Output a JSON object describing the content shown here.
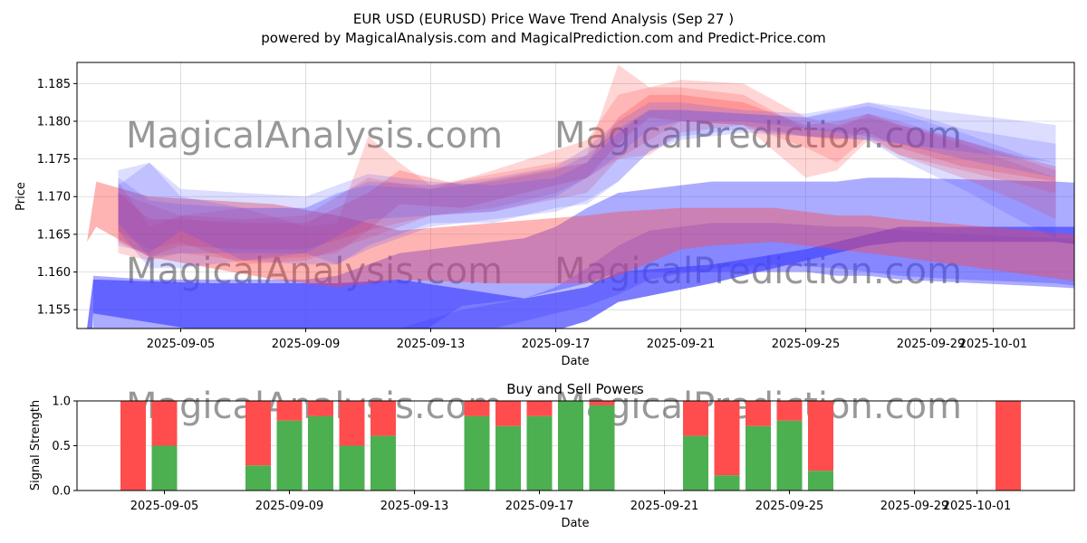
{
  "colors": {
    "red": "#ff4444",
    "blue": "#4444ff",
    "buy": "#4caf50",
    "sell": "#ff4d4d",
    "grid": "#b0b0b0"
  },
  "chart_data": [
    {
      "type": "area",
      "title": "EUR USD (EURUSD) Price Wave Trend Analysis (Sep 27 )",
      "subtitle": "powered by MagicalAnalysis.com and MagicalPrediction.com and Predict-Price.com",
      "xlabel": "Date",
      "ylabel": "Price",
      "ylim": [
        1.1525,
        1.1878
      ],
      "xlim": [
        "2025-09-02",
        "2025-10-04"
      ],
      "x_ticks": [
        "2025-09-05",
        "2025-09-09",
        "2025-09-13",
        "2025-09-17",
        "2025-09-21",
        "2025-09-25",
        "2025-09-29",
        "2025-10-01"
      ],
      "y_ticks": [
        "1.155",
        "1.160",
        "1.165",
        "1.170",
        "1.175",
        "1.180",
        "1.185"
      ],
      "grid": true,
      "watermarks": [
        "MagicalAnalysis.com",
        "MagicalPrediction.com"
      ],
      "bands": [
        {
          "color": "blue",
          "opacity": 0.7,
          "x": [
            0.0,
            0.2,
            4,
            7,
            8,
            10,
            14,
            16,
            17,
            20,
            23,
            25,
            26,
            31,
            33
          ],
          "lo": [
            1.14,
            1.1545,
            1.152,
            1.151,
            1.15,
            1.15,
            1.151,
            1.1535,
            1.156,
            1.1585,
            1.1615,
            1.1635,
            1.164,
            1.164,
            1.163
          ],
          "hi": [
            1.1525,
            1.159,
            1.1585,
            1.1585,
            1.1585,
            1.159,
            1.1565,
            1.158,
            1.16,
            1.161,
            1.163,
            1.165,
            1.166,
            1.166,
            1.166
          ]
        },
        {
          "color": "blue",
          "opacity": 0.45,
          "x": [
            0.2,
            2,
            4,
            7,
            8,
            10,
            12,
            14,
            15,
            16,
            17,
            19,
            20,
            23,
            24,
            25,
            26,
            31,
            33
          ],
          "lo": [
            1.1525,
            1.149,
            1.148,
            1.148,
            1.149,
            1.15,
            1.1555,
            1.1565,
            1.1575,
            1.1585,
            1.16,
            1.16,
            1.16,
            1.16,
            1.1595,
            1.1595,
            1.159,
            1.158,
            1.1575
          ],
          "hi": [
            1.1595,
            1.159,
            1.159,
            1.159,
            1.1595,
            1.1625,
            1.1635,
            1.1645,
            1.166,
            1.1685,
            1.1705,
            1.1715,
            1.172,
            1.172,
            1.172,
            1.1725,
            1.1725,
            1.172,
            1.1715
          ]
        },
        {
          "color": "blue",
          "opacity": 0.35,
          "x": [
            9,
            10,
            12,
            14,
            15,
            16,
            17,
            18,
            20,
            22,
            24,
            25,
            26,
            28,
            31,
            33
          ],
          "lo": [
            1.15,
            1.1485,
            1.1515,
            1.1535,
            1.1545,
            1.1555,
            1.157,
            1.159,
            1.1605,
            1.161,
            1.1605,
            1.16,
            1.1595,
            1.159,
            1.1585,
            1.1575
          ],
          "hi": [
            1.1525,
            1.1525,
            1.155,
            1.1565,
            1.158,
            1.1605,
            1.1635,
            1.1655,
            1.1665,
            1.1665,
            1.166,
            1.166,
            1.1655,
            1.165,
            1.1645,
            1.164
          ]
        },
        {
          "color": "red",
          "opacity": 0.4,
          "x": [
            0,
            0.3,
            2,
            6,
            8,
            10,
            13,
            16,
            17,
            19,
            20,
            22,
            23,
            24,
            25,
            26,
            33
          ],
          "lo": [
            1.164,
            1.166,
            1.162,
            1.159,
            1.158,
            1.159,
            1.1585,
            1.1585,
            1.1595,
            1.163,
            1.1635,
            1.164,
            1.1635,
            1.163,
            1.1625,
            1.162,
            1.158
          ],
          "hi": [
            1.164,
            1.172,
            1.17,
            1.169,
            1.1675,
            1.1655,
            1.1665,
            1.1675,
            1.168,
            1.1685,
            1.1685,
            1.1685,
            1.168,
            1.1675,
            1.1675,
            1.167,
            1.1645
          ]
        },
        {
          "color": "red",
          "opacity": 0.22,
          "x": [
            1,
            2,
            3,
            5,
            7,
            9,
            11,
            13,
            16,
            17,
            19,
            21,
            23,
            24,
            25,
            26,
            28,
            30,
            31
          ],
          "lo": [
            1.1655,
            1.163,
            1.164,
            1.161,
            1.1615,
            1.1645,
            1.1675,
            1.168,
            1.1705,
            1.175,
            1.18,
            1.1795,
            1.1765,
            1.1745,
            1.178,
            1.1755,
            1.1725,
            1.169,
            1.167
          ],
          "hi": [
            1.1705,
            1.169,
            1.1675,
            1.167,
            1.1675,
            1.1725,
            1.171,
            1.1735,
            1.1775,
            1.1835,
            1.1855,
            1.185,
            1.1805,
            1.1795,
            1.1805,
            1.1795,
            1.177,
            1.174,
            1.1725
          ]
        },
        {
          "color": "red",
          "opacity": 0.22,
          "x": [
            1,
            2,
            3,
            5,
            7,
            8,
            9,
            10,
            11,
            13,
            15,
            16,
            17,
            18,
            19,
            21,
            23,
            24,
            25,
            26,
            28,
            31
          ],
          "lo": [
            1.1625,
            1.1615,
            1.1625,
            1.1615,
            1.162,
            1.1625,
            1.1655,
            1.1665,
            1.1675,
            1.1685,
            1.1705,
            1.1725,
            1.175,
            1.1755,
            1.1785,
            1.1795,
            1.1725,
            1.1735,
            1.1775,
            1.1755,
            1.1735,
            1.1705
          ],
          "hi": [
            1.172,
            1.166,
            1.1675,
            1.1685,
            1.166,
            1.1665,
            1.178,
            1.1745,
            1.1715,
            1.173,
            1.1745,
            1.1755,
            1.1875,
            1.1845,
            1.1845,
            1.1835,
            1.179,
            1.179,
            1.181,
            1.18,
            1.1775,
            1.1735
          ]
        },
        {
          "color": "red",
          "opacity": 0.28,
          "x": [
            1,
            2,
            3,
            5,
            7,
            9,
            10,
            12,
            14,
            16,
            17,
            18,
            19,
            21,
            23,
            24,
            25,
            26,
            28,
            31
          ],
          "lo": [
            1.164,
            1.162,
            1.1635,
            1.163,
            1.163,
            1.1655,
            1.169,
            1.1685,
            1.1705,
            1.1725,
            1.177,
            1.1805,
            1.18,
            1.1795,
            1.178,
            1.1775,
            1.1785,
            1.1765,
            1.174,
            1.172
          ],
          "hi": [
            1.1705,
            1.167,
            1.167,
            1.1665,
            1.1665,
            1.1705,
            1.1735,
            1.1715,
            1.173,
            1.1745,
            1.1805,
            1.1835,
            1.1835,
            1.1825,
            1.1795,
            1.18,
            1.181,
            1.1795,
            1.1775,
            1.174
          ]
        },
        {
          "color": "blue",
          "opacity": 0.18,
          "x": [
            1,
            2,
            3,
            5,
            7,
            8,
            9,
            11,
            13,
            15,
            16,
            17,
            18,
            19,
            21,
            23,
            25,
            26,
            28,
            31
          ],
          "lo": [
            1.1655,
            1.1605,
            1.1605,
            1.1615,
            1.161,
            1.161,
            1.1635,
            1.1665,
            1.1665,
            1.1685,
            1.169,
            1.172,
            1.176,
            1.1775,
            1.1785,
            1.178,
            1.1775,
            1.177,
            1.176,
            1.1745
          ],
          "hi": [
            1.1735,
            1.1745,
            1.171,
            1.1705,
            1.17,
            1.1715,
            1.173,
            1.172,
            1.1715,
            1.1725,
            1.1745,
            1.1785,
            1.1815,
            1.1815,
            1.181,
            1.1805,
            1.1825,
            1.182,
            1.181,
            1.1795
          ]
        },
        {
          "color": "blue",
          "opacity": 0.18,
          "x": [
            1,
            2,
            3,
            5,
            7,
            9,
            11,
            13,
            15,
            16,
            17,
            18,
            19,
            21,
            23,
            25,
            26,
            28,
            31
          ],
          "lo": [
            1.1665,
            1.162,
            1.1625,
            1.1625,
            1.1625,
            1.167,
            1.1675,
            1.168,
            1.17,
            1.1725,
            1.1755,
            1.179,
            1.18,
            1.18,
            1.179,
            1.178,
            1.177,
            1.175,
            1.1725
          ],
          "hi": [
            1.1725,
            1.1695,
            1.169,
            1.1685,
            1.1685,
            1.172,
            1.1715,
            1.1725,
            1.174,
            1.1765,
            1.18,
            1.1825,
            1.1825,
            1.1815,
            1.181,
            1.1825,
            1.1815,
            1.179,
            1.177
          ]
        },
        {
          "color": "blue",
          "opacity": 0.18,
          "x": [
            1,
            2,
            3,
            5,
            7,
            8,
            9,
            11,
            13,
            15,
            16,
            17,
            18,
            19,
            21,
            23,
            25,
            26,
            28,
            30,
            31
          ],
          "lo": [
            1.1635,
            1.1625,
            1.1655,
            1.1615,
            1.1625,
            1.161,
            1.163,
            1.166,
            1.167,
            1.168,
            1.1695,
            1.172,
            1.176,
            1.178,
            1.179,
            1.178,
            1.1775,
            1.175,
            1.171,
            1.1665,
            1.1645
          ],
          "hi": [
            1.1715,
            1.1745,
            1.17,
            1.1685,
            1.1685,
            1.1705,
            1.1715,
            1.171,
            1.172,
            1.1735,
            1.1755,
            1.179,
            1.1815,
            1.1815,
            1.181,
            1.1805,
            1.182,
            1.181,
            1.1785,
            1.1755,
            1.1745
          ]
        }
      ]
    },
    {
      "type": "bar",
      "title": "Buy and Sell Powers",
      "xlabel": "Date",
      "ylabel": "Signal Strength",
      "ylim": [
        0,
        1.0
      ],
      "y_ticks": [
        "0.0",
        "0.5",
        "1.0"
      ],
      "x_ticks": [
        "2025-09-05",
        "2025-09-09",
        "2025-09-13",
        "2025-09-17",
        "2025-09-21",
        "2025-09-25",
        "2025-09-29",
        "2025-10-01"
      ],
      "grid": true,
      "series": [
        {
          "name": "Buy",
          "color": "buy"
        },
        {
          "name": "Sell",
          "color": "sell"
        }
      ],
      "categories": [
        "2025-09-04",
        "2025-09-05",
        "2025-09-08",
        "2025-09-09",
        "2025-09-10",
        "2025-09-11",
        "2025-09-12",
        "2025-09-15",
        "2025-09-16",
        "2025-09-17",
        "2025-09-18",
        "2025-09-19",
        "2025-09-22",
        "2025-09-23",
        "2025-09-24",
        "2025-09-25",
        "2025-09-26",
        "2025-10-02"
      ],
      "buy": [
        0.0,
        0.5,
        0.28,
        0.78,
        0.83,
        0.5,
        0.61,
        0.83,
        0.72,
        0.83,
        1.0,
        0.95,
        0.61,
        0.17,
        0.72,
        0.78,
        0.22,
        0.0
      ],
      "sell": [
        1.0,
        0.5,
        0.72,
        0.22,
        0.17,
        0.5,
        0.39,
        0.17,
        0.28,
        0.17,
        0.0,
        0.05,
        0.39,
        0.83,
        0.28,
        0.22,
        0.78,
        1.0
      ]
    }
  ]
}
